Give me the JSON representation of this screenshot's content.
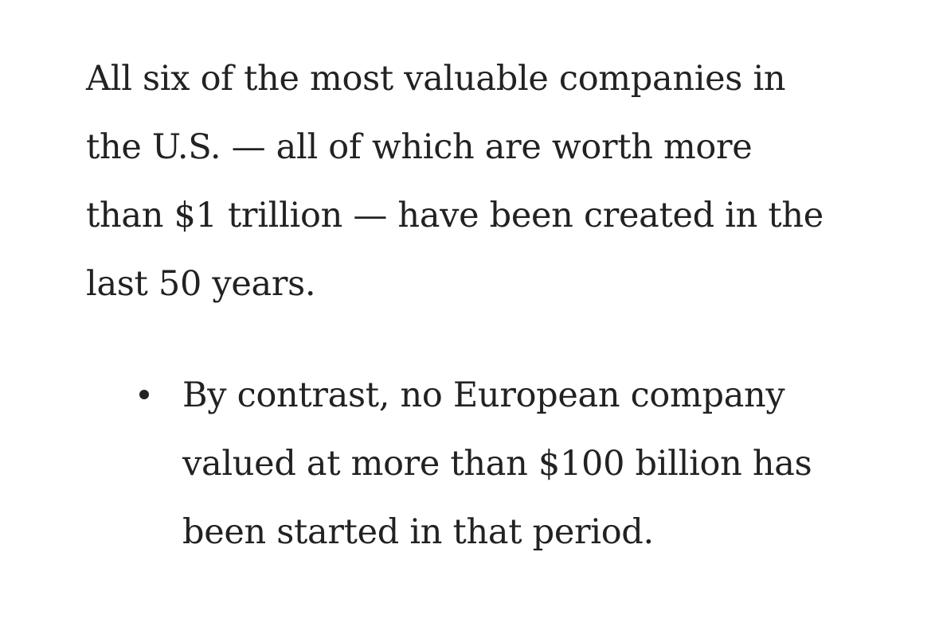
{
  "article": {
    "paragraph_lines": [
      "All six of the most valuable companies in",
      "the U.S. — all of which are worth more",
      "than $1 trillion — have been created in the",
      "last 50 years."
    ],
    "bullets": [
      {
        "lines": [
          "By contrast, no European company",
          "valued at more than $100 billion has",
          "been started in that period."
        ]
      }
    ]
  }
}
